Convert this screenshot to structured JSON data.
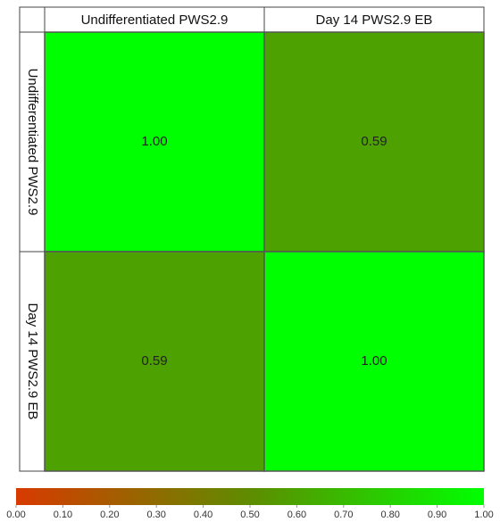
{
  "chart_data": {
    "type": "heatmap",
    "columns": [
      "Undifferentiated PWS2.9",
      "Day 14 PWS2.9 EB"
    ],
    "rows": [
      "Undifferentiated PWS2.9",
      "Day 14 PWS2.9 EB"
    ],
    "values": [
      [
        1.0,
        0.59
      ],
      [
        0.59,
        1.0
      ]
    ],
    "value_labels": [
      [
        "1.00",
        "0.59"
      ],
      [
        "0.59",
        "1.00"
      ]
    ],
    "zlim": [
      0,
      1
    ],
    "colormap": [
      "#d83a00",
      "#5e8c00",
      "#00ff00"
    ],
    "zticks": [
      {
        "value": 0,
        "label": "0.00"
      },
      {
        "value": 0.1,
        "label": "0.10"
      },
      {
        "value": 0.2,
        "label": "0.20"
      },
      {
        "value": 0.3,
        "label": "0.30"
      },
      {
        "value": 0.4,
        "label": "0.40"
      },
      {
        "value": 0.5,
        "label": "0.50"
      },
      {
        "value": 0.6,
        "label": "0.60"
      },
      {
        "value": 0.7,
        "label": "0.70"
      },
      {
        "value": 0.8,
        "label": "0.80"
      },
      {
        "value": 0.9,
        "label": "0.90"
      },
      {
        "value": 1,
        "label": "1.00"
      }
    ]
  }
}
